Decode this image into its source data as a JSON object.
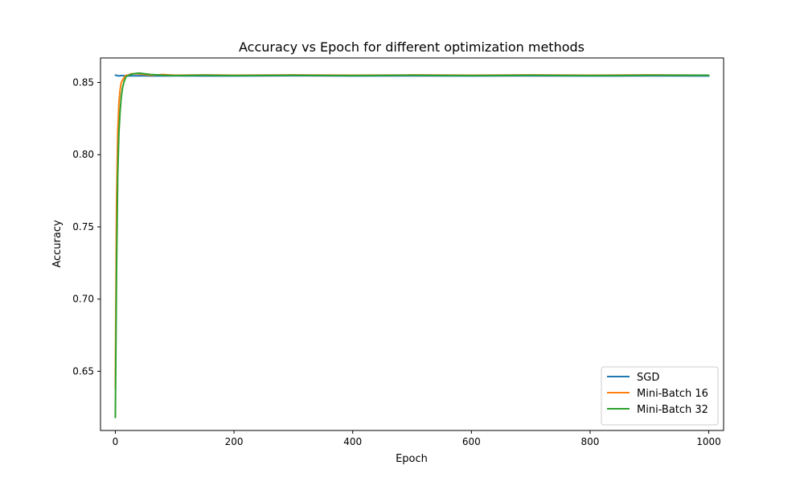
{
  "chart_data": {
    "type": "line",
    "title": "Accuracy vs Epoch for different optimization methods",
    "xlabel": "Epoch",
    "ylabel": "Accuracy",
    "xlim": [
      -25,
      1025
    ],
    "ylim": [
      0.609,
      0.867
    ],
    "xticks": [
      0,
      200,
      400,
      600,
      800,
      1000
    ],
    "xtick_labels": [
      "0",
      "200",
      "400",
      "600",
      "800",
      "1000"
    ],
    "yticks": [
      0.65,
      0.7,
      0.75,
      0.8,
      0.85
    ],
    "ytick_labels": [
      "0.65",
      "0.70",
      "0.75",
      "0.80",
      "0.85"
    ],
    "grid": false,
    "legend_position": "lower-right",
    "series": [
      {
        "name": "SGD",
        "color": "#1f77b4",
        "x": [
          0,
          2,
          5,
          10,
          20,
          40,
          60,
          100,
          200,
          300,
          400,
          500,
          600,
          700,
          800,
          900,
          1000
        ],
        "y": [
          0.855,
          0.855,
          0.8545,
          0.8548,
          0.8545,
          0.8547,
          0.8545,
          0.8546,
          0.8545,
          0.8547,
          0.8545,
          0.8546,
          0.8545,
          0.8546,
          0.8545,
          0.8546,
          0.8545
        ]
      },
      {
        "name": "Mini-Batch 16",
        "color": "#ff7f0e",
        "x": [
          0,
          2,
          4,
          6,
          8,
          10,
          14,
          18,
          22,
          26,
          30,
          40,
          50,
          60,
          80,
          100,
          150,
          200,
          300,
          400,
          500,
          600,
          700,
          800,
          900,
          1000
        ],
        "y": [
          0.638,
          0.765,
          0.815,
          0.836,
          0.845,
          0.85,
          0.853,
          0.855,
          0.855,
          0.856,
          0.856,
          0.856,
          0.8555,
          0.855,
          0.8555,
          0.855,
          0.8552,
          0.855,
          0.8552,
          0.855,
          0.8552,
          0.855,
          0.8552,
          0.855,
          0.8552,
          0.855
        ]
      },
      {
        "name": "Mini-Batch 32",
        "color": "#2ca02c",
        "x": [
          0,
          2,
          4,
          6,
          8,
          10,
          12,
          15,
          18,
          22,
          26,
          30,
          40,
          50,
          60,
          80,
          100,
          150,
          200,
          300,
          400,
          500,
          600,
          700,
          800,
          900,
          1000
        ],
        "y": [
          0.618,
          0.72,
          0.785,
          0.815,
          0.83,
          0.84,
          0.846,
          0.851,
          0.854,
          0.855,
          0.8555,
          0.856,
          0.8565,
          0.856,
          0.8555,
          0.855,
          0.8548,
          0.855,
          0.8548,
          0.855,
          0.8548,
          0.855,
          0.8548,
          0.855,
          0.8548,
          0.855,
          0.855
        ]
      }
    ]
  }
}
